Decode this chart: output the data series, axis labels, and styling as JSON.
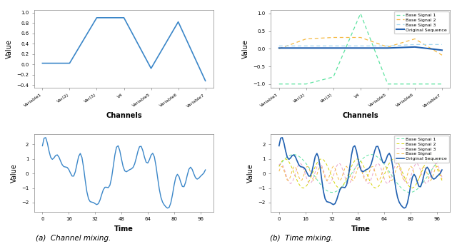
{
  "channel_labels": [
    "Variable1",
    "Var(2)",
    "Var(3)",
    "V4",
    "Variable5",
    "Variable6",
    "Variable7"
  ],
  "mixed_ch": [
    0.02,
    0.02,
    0.9,
    0.9,
    -0.08,
    0.82,
    -0.32
  ],
  "base1_ch": [
    -1.0,
    -1.0,
    -0.8,
    1.0,
    -1.0,
    -1.0,
    -1.0
  ],
  "base2_ch": [
    0.0,
    0.28,
    0.32,
    0.32,
    0.05,
    0.28,
    -0.18
  ],
  "base3_ch": [
    0.08,
    0.08,
    0.08,
    0.08,
    0.08,
    0.12,
    0.12
  ],
  "orig_ch": [
    0.02,
    0.02,
    0.02,
    0.02,
    0.02,
    0.05,
    -0.04
  ],
  "color_mixed": "#3a86c8",
  "color_base1": "#5de3a0",
  "color_base2": "#f5b942",
  "color_base3": "#a8d8f0",
  "color_original": "#2060b0",
  "caption_a": "(a)  Channel mixing.",
  "caption_b": "(b)  Time mixing."
}
